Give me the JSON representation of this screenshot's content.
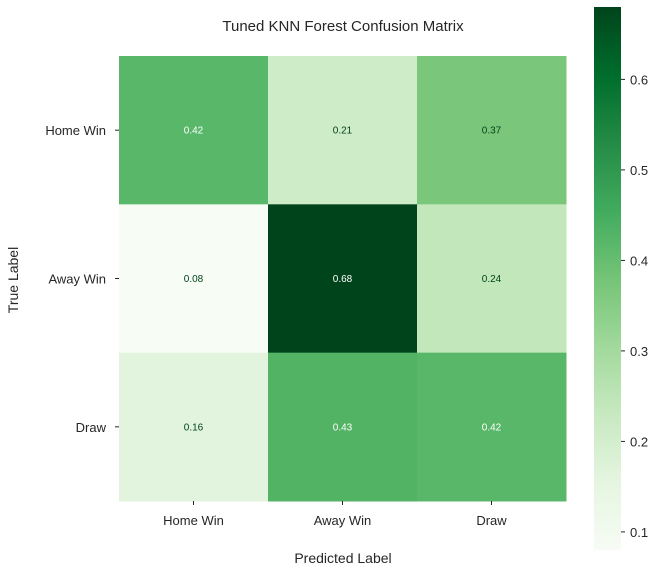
{
  "chart_data": {
    "type": "heatmap",
    "title": "Tuned KNN Forest Confusion Matrix",
    "xlabel": "Predicted Label",
    "ylabel": "True Label",
    "x_categories": [
      "Home Win",
      "Away Win",
      "Draw"
    ],
    "y_categories": [
      "Home Win",
      "Away Win",
      "Draw"
    ],
    "values": [
      [
        0.42,
        0.21,
        0.37
      ],
      [
        0.08,
        0.68,
        0.24
      ],
      [
        0.16,
        0.43,
        0.42
      ]
    ],
    "cell_labels": [
      [
        "0.42",
        "0.21",
        "0.37"
      ],
      [
        "0.08",
        "0.68",
        "0.24"
      ],
      [
        "0.16",
        "0.43",
        "0.42"
      ]
    ],
    "colormap": "Greens",
    "colorbar": {
      "range": [
        0.08,
        0.68
      ],
      "ticks": [
        0.1,
        0.2,
        0.3,
        0.4,
        0.5,
        0.6
      ],
      "tick_labels": [
        "0.1",
        "0.2",
        "0.3",
        "0.4",
        "0.5",
        "0.6"
      ]
    },
    "grid": false,
    "colors": {
      "cmap_light": "#f7fcf5",
      "cmap_dark": "#00441b",
      "text_dark_cell": "#ffffff",
      "text_light_cell": "#00441b"
    }
  }
}
